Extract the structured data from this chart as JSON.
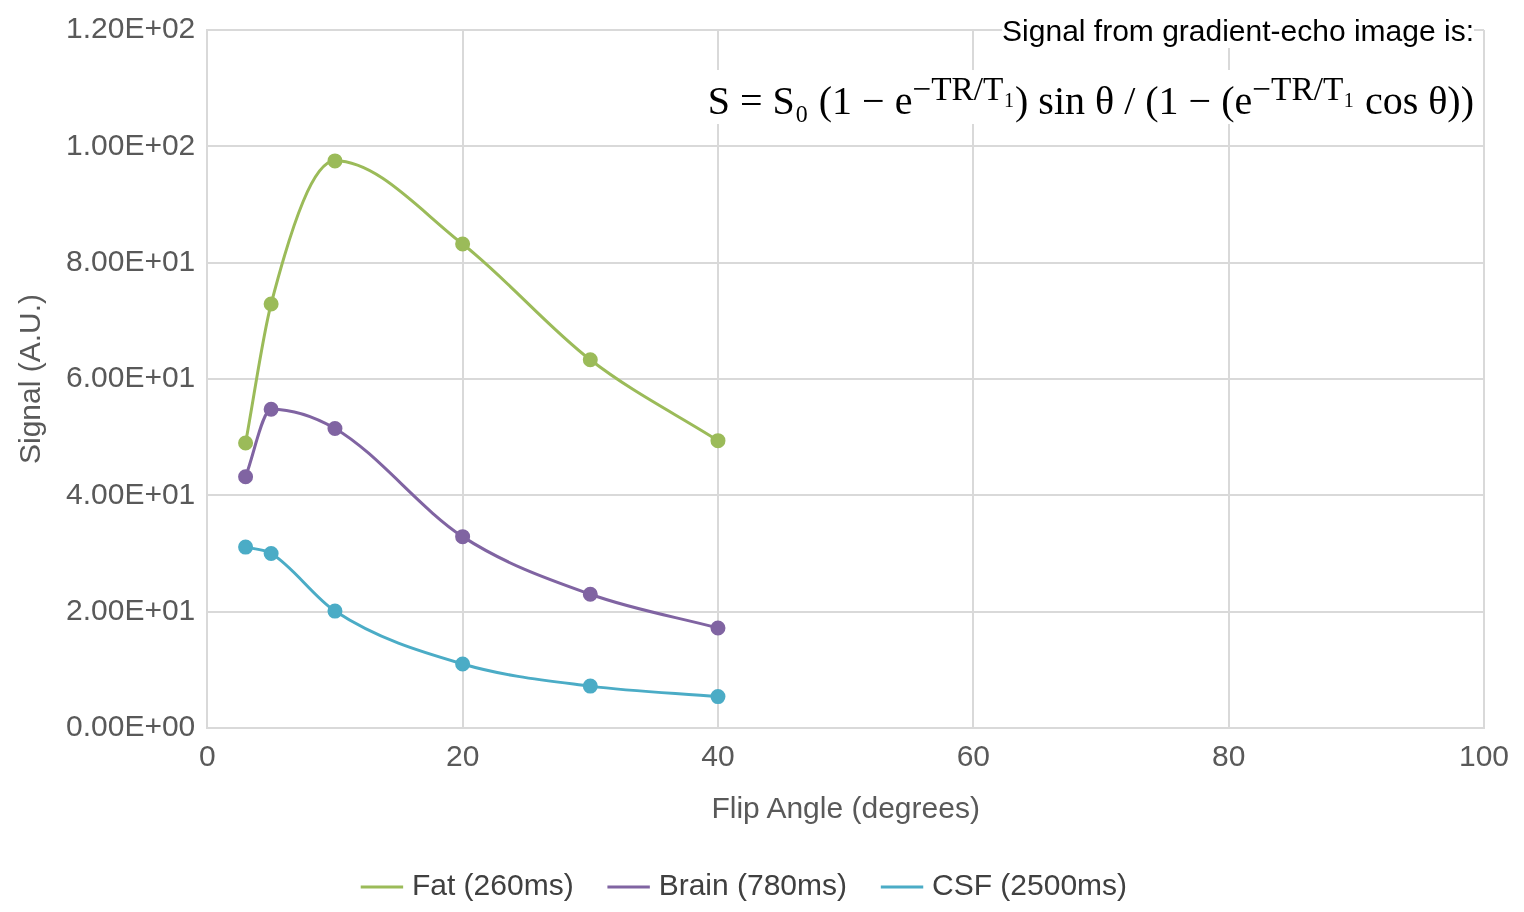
{
  "chart_data": {
    "type": "line",
    "xlabel": "Flip Angle (degrees)",
    "ylabel": "Signal (A.U.)",
    "x": [
      3,
      5,
      10,
      20,
      30,
      40
    ],
    "series": [
      {
        "name": "Fat (260ms)",
        "color": "#9bbb59",
        "values": [
          49.0,
          72.9,
          97.5,
          83.2,
          63.3,
          49.4
        ]
      },
      {
        "name": "Brain (780ms)",
        "color": "#8064a2",
        "values": [
          43.2,
          54.8,
          51.5,
          32.9,
          23.0,
          17.2
        ]
      },
      {
        "name": "CSF (2500ms)",
        "color": "#4bacc6",
        "values": [
          31.1,
          30.0,
          20.1,
          11.0,
          7.2,
          5.4
        ]
      }
    ],
    "xlim": [
      0,
      100
    ],
    "xticks": [
      0,
      20,
      40,
      60,
      80,
      100
    ],
    "ylim": [
      0,
      120
    ],
    "yticks": [
      {
        "value": 0,
        "label": "0.00E+00"
      },
      {
        "value": 20,
        "label": "2.00E+01"
      },
      {
        "value": 40,
        "label": "4.00E+01"
      },
      {
        "value": 60,
        "label": "6.00E+01"
      },
      {
        "value": 80,
        "label": "8.00E+01"
      },
      {
        "value": 100,
        "label": "1.00E+02"
      },
      {
        "value": 120,
        "label": "1.20E+02"
      }
    ],
    "grid": true,
    "legend": "bottom",
    "marker": "circle",
    "line_style": "solid",
    "annotations": [
      "Signal from gradient-echo image is:",
      "S = S₀ (1 − e$^{−TR/T₁}$) sin θ / (1 − (e$^{−TR/T₁}$ cos θ))"
    ]
  }
}
